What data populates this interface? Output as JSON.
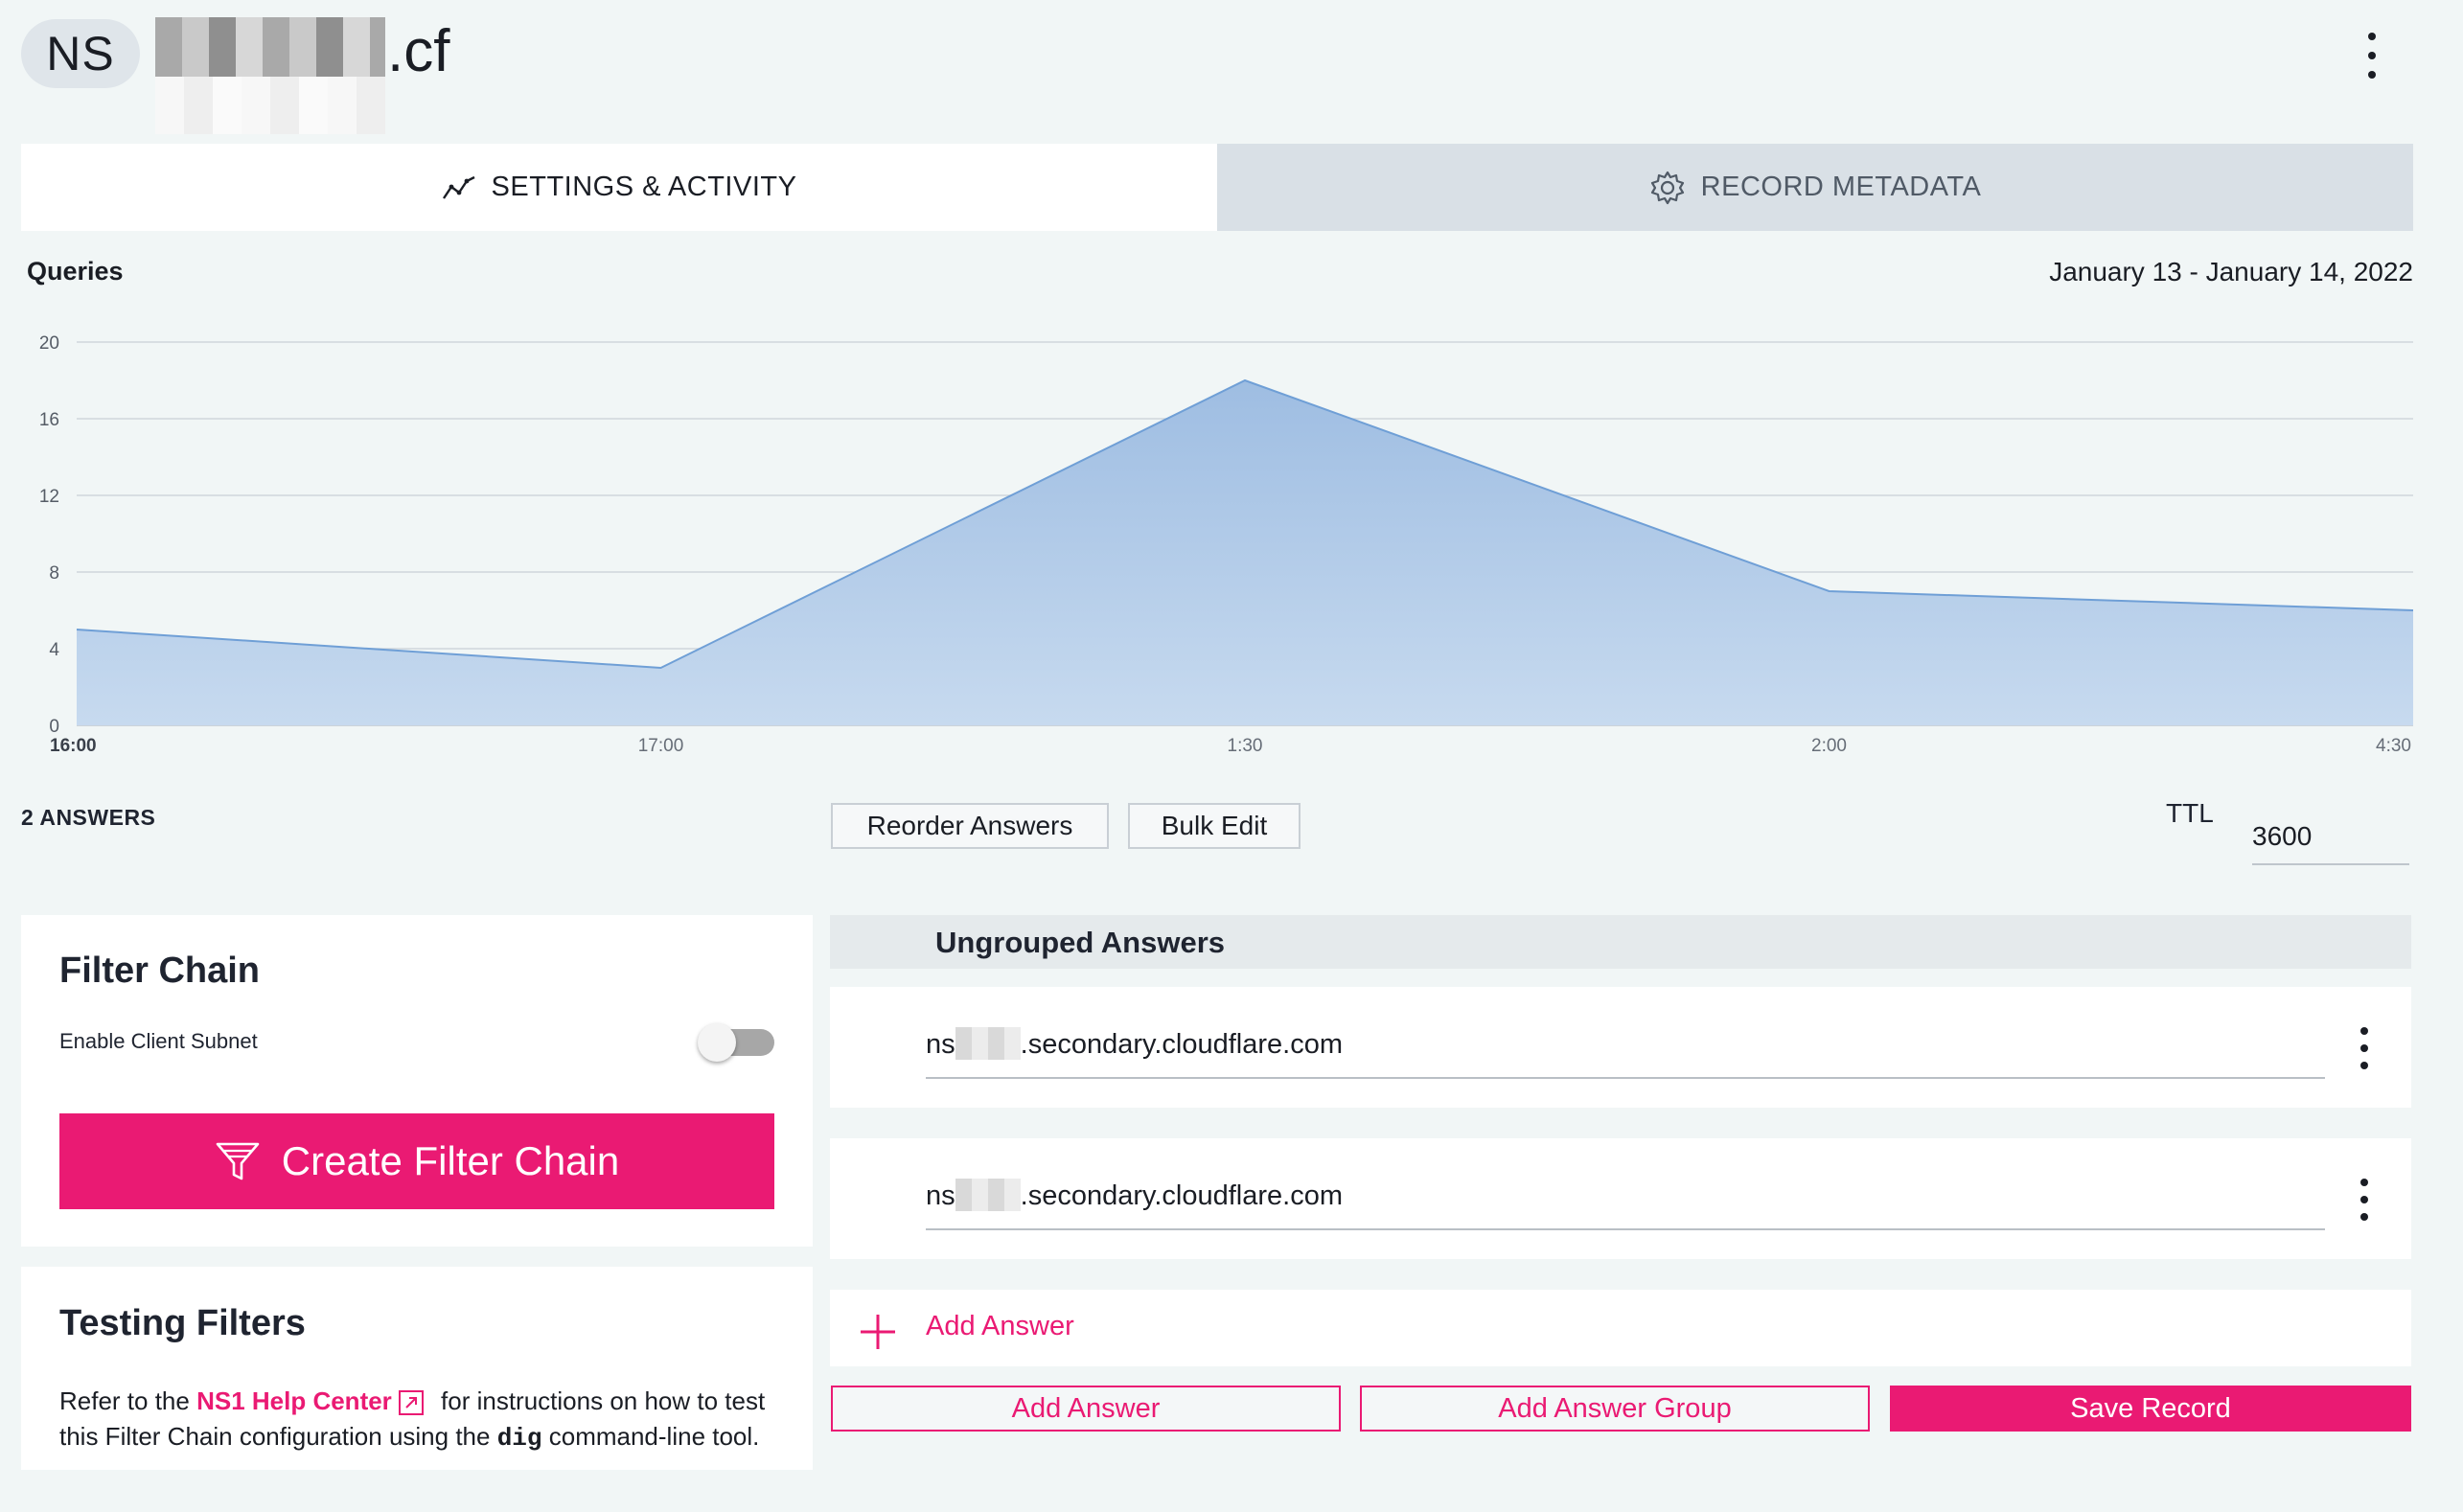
{
  "header": {
    "badge": "NS",
    "domain_suffix": ".cf"
  },
  "tabs": [
    {
      "label": "SETTINGS & ACTIVITY",
      "icon": "chart-line-icon",
      "active": true
    },
    {
      "label": "RECORD METADATA",
      "icon": "gear-icon",
      "active": false
    }
  ],
  "chart": {
    "title": "Queries",
    "date_range": "January 13 - January 14, 2022"
  },
  "chart_data": {
    "type": "area",
    "title": "Queries",
    "x": [
      "16:00",
      "17:00",
      "1:30",
      "2:00",
      "4:30"
    ],
    "values": [
      5,
      3,
      18,
      7,
      6
    ],
    "ylim": [
      0,
      20
    ],
    "yticks": [
      0,
      4,
      8,
      12,
      16,
      20
    ],
    "grid": true,
    "color": "#a6c2e3",
    "line_color": "#6f9fd6"
  },
  "answers_bar": {
    "count": "2 ANSWERS",
    "reorder_label": "Reorder Answers",
    "bulk_edit_label": "Bulk Edit",
    "ttl_label": "TTL",
    "ttl_value": "3600"
  },
  "filter_chain": {
    "title": "Filter Chain",
    "enable_client_subnet": "Enable Client Subnet",
    "toggle_on": false,
    "create_label": "Create Filter Chain"
  },
  "testing_filters": {
    "title": "Testing Filters",
    "text_before": "Refer to the ",
    "link": "NS1 Help Center",
    "text_after": " for instructions on how to test this Filter Chain configuration using the ",
    "code": "dig",
    "text_end": " command-line tool."
  },
  "answers": {
    "group_title": "Ungrouped Answers",
    "items": [
      {
        "prefix": "ns",
        "suffix": ".secondary.cloudflare.com"
      },
      {
        "prefix": "ns",
        "suffix": ".secondary.cloudflare.com"
      }
    ],
    "add_answer_link": "Add Answer"
  },
  "footer_buttons": {
    "add_answer": "Add Answer",
    "add_answer_group": "Add Answer Group",
    "save_record": "Save Record"
  },
  "colors": {
    "accent": "#ea1a73",
    "background": "#f1f6f6"
  }
}
